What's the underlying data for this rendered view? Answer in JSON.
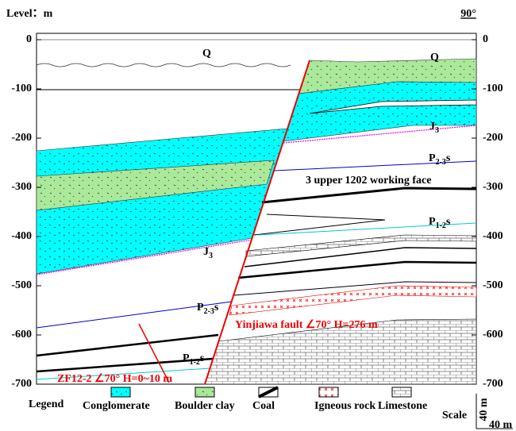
{
  "header": {
    "level_label": "Level：m",
    "angle": "90°"
  },
  "levels": [
    0,
    -100,
    -200,
    -300,
    -400,
    -500,
    -600,
    -700
  ],
  "strata_labels": [
    {
      "base": "Q"
    },
    {
      "base": "Q"
    },
    {
      "base": "J",
      "sub": "3"
    },
    {
      "base": "J",
      "sub": "3"
    },
    {
      "base": "P",
      "sub": "2-3",
      "suffix": "s"
    },
    {
      "base": "P",
      "sub": "2-3",
      "suffix": "s"
    },
    {
      "base": "P",
      "sub": "1-2",
      "suffix": "s"
    },
    {
      "base": "P",
      "sub": "1-2",
      "suffix": "s"
    }
  ],
  "annotations": {
    "working_face": "3 upper 1202 working face",
    "fault": "Yinjiawa fault ∠70° H=276 m",
    "minor_fault": "ZF12-2 ∠70° H=0~10 m"
  },
  "legend": {
    "title": "Legend",
    "items": [
      "Conglomerate",
      "Boulder clay",
      "Coal",
      "Igneous rock",
      "Limestone"
    ]
  },
  "scale": {
    "label": "Scale",
    "vertical": "40 m",
    "horizontal": "40 m"
  }
}
